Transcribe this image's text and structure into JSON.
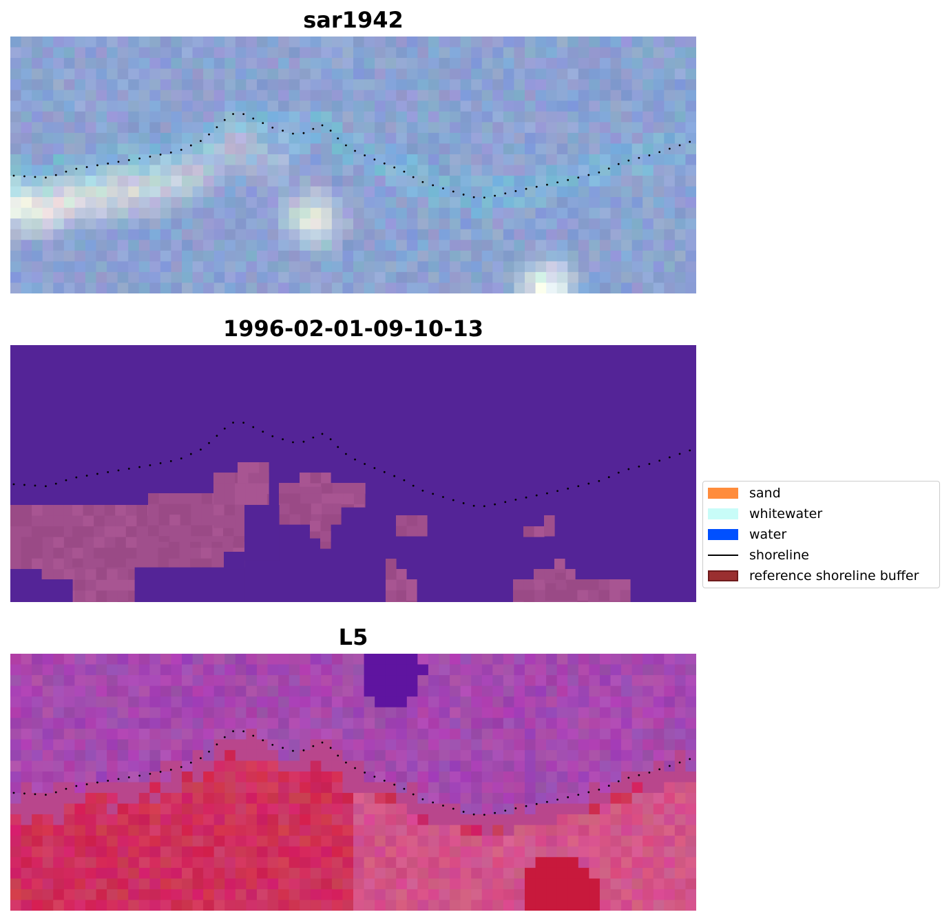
{
  "panels": [
    {
      "title": "sar1942",
      "kind": "rgb"
    },
    {
      "title": "1996-02-01-09-10-13",
      "kind": "classified"
    },
    {
      "title": "L5",
      "kind": "index"
    }
  ],
  "legend": {
    "items": [
      {
        "label": "sand",
        "color": "#ff8c3c",
        "style": "patch"
      },
      {
        "label": "whitewater",
        "color": "#c8fcf8",
        "style": "patch"
      },
      {
        "label": "water",
        "color": "#0050ff",
        "style": "patch"
      },
      {
        "label": "shoreline",
        "color": "#000000",
        "style": "line"
      },
      {
        "label": "reference shoreline buffer",
        "color": "#9a2f30",
        "style": "patch"
      }
    ]
  },
  "colors": {
    "classified_background": "#542497",
    "classified_sand_overlay": "#9a4a86",
    "shoreline_points": "#000000"
  }
}
